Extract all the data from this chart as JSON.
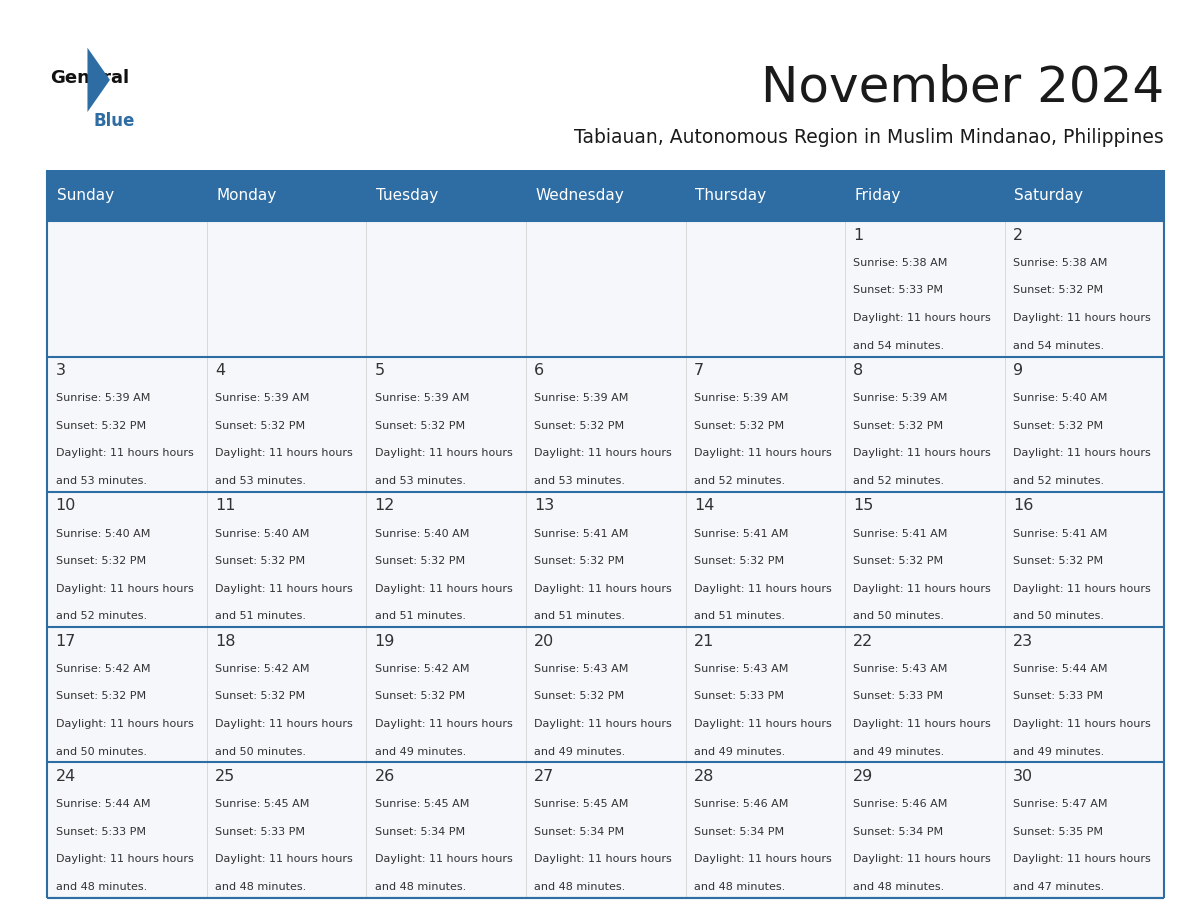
{
  "title": "November 2024",
  "subtitle": "Tabiauan, Autonomous Region in Muslim Mindanao, Philippines",
  "days_of_week": [
    "Sunday",
    "Monday",
    "Tuesday",
    "Wednesday",
    "Thursday",
    "Friday",
    "Saturday"
  ],
  "header_bg": "#2E6DA4",
  "header_text": "#FFFFFF",
  "cell_bg": "#F5F7FA",
  "border_color": "#2E6DA4",
  "row_border_color": "#2E6DA4",
  "col_border_color": "#CCCCCC",
  "text_color": "#333333",
  "title_color": "#1a1a1a",
  "calendar_data": [
    [
      null,
      null,
      null,
      null,
      null,
      {
        "day": 1,
        "sunrise": "5:38 AM",
        "sunset": "5:33 PM",
        "daylight": "11 hours and 54 minutes."
      },
      {
        "day": 2,
        "sunrise": "5:38 AM",
        "sunset": "5:32 PM",
        "daylight": "11 hours and 54 minutes."
      }
    ],
    [
      {
        "day": 3,
        "sunrise": "5:39 AM",
        "sunset": "5:32 PM",
        "daylight": "11 hours and 53 minutes."
      },
      {
        "day": 4,
        "sunrise": "5:39 AM",
        "sunset": "5:32 PM",
        "daylight": "11 hours and 53 minutes."
      },
      {
        "day": 5,
        "sunrise": "5:39 AM",
        "sunset": "5:32 PM",
        "daylight": "11 hours and 53 minutes."
      },
      {
        "day": 6,
        "sunrise": "5:39 AM",
        "sunset": "5:32 PM",
        "daylight": "11 hours and 53 minutes."
      },
      {
        "day": 7,
        "sunrise": "5:39 AM",
        "sunset": "5:32 PM",
        "daylight": "11 hours and 52 minutes."
      },
      {
        "day": 8,
        "sunrise": "5:39 AM",
        "sunset": "5:32 PM",
        "daylight": "11 hours and 52 minutes."
      },
      {
        "day": 9,
        "sunrise": "5:40 AM",
        "sunset": "5:32 PM",
        "daylight": "11 hours and 52 minutes."
      }
    ],
    [
      {
        "day": 10,
        "sunrise": "5:40 AM",
        "sunset": "5:32 PM",
        "daylight": "11 hours and 52 minutes."
      },
      {
        "day": 11,
        "sunrise": "5:40 AM",
        "sunset": "5:32 PM",
        "daylight": "11 hours and 51 minutes."
      },
      {
        "day": 12,
        "sunrise": "5:40 AM",
        "sunset": "5:32 PM",
        "daylight": "11 hours and 51 minutes."
      },
      {
        "day": 13,
        "sunrise": "5:41 AM",
        "sunset": "5:32 PM",
        "daylight": "11 hours and 51 minutes."
      },
      {
        "day": 14,
        "sunrise": "5:41 AM",
        "sunset": "5:32 PM",
        "daylight": "11 hours and 51 minutes."
      },
      {
        "day": 15,
        "sunrise": "5:41 AM",
        "sunset": "5:32 PM",
        "daylight": "11 hours and 50 minutes."
      },
      {
        "day": 16,
        "sunrise": "5:41 AM",
        "sunset": "5:32 PM",
        "daylight": "11 hours and 50 minutes."
      }
    ],
    [
      {
        "day": 17,
        "sunrise": "5:42 AM",
        "sunset": "5:32 PM",
        "daylight": "11 hours and 50 minutes."
      },
      {
        "day": 18,
        "sunrise": "5:42 AM",
        "sunset": "5:32 PM",
        "daylight": "11 hours and 50 minutes."
      },
      {
        "day": 19,
        "sunrise": "5:42 AM",
        "sunset": "5:32 PM",
        "daylight": "11 hours and 49 minutes."
      },
      {
        "day": 20,
        "sunrise": "5:43 AM",
        "sunset": "5:32 PM",
        "daylight": "11 hours and 49 minutes."
      },
      {
        "day": 21,
        "sunrise": "5:43 AM",
        "sunset": "5:33 PM",
        "daylight": "11 hours and 49 minutes."
      },
      {
        "day": 22,
        "sunrise": "5:43 AM",
        "sunset": "5:33 PM",
        "daylight": "11 hours and 49 minutes."
      },
      {
        "day": 23,
        "sunrise": "5:44 AM",
        "sunset": "5:33 PM",
        "daylight": "11 hours and 49 minutes."
      }
    ],
    [
      {
        "day": 24,
        "sunrise": "5:44 AM",
        "sunset": "5:33 PM",
        "daylight": "11 hours and 48 minutes."
      },
      {
        "day": 25,
        "sunrise": "5:45 AM",
        "sunset": "5:33 PM",
        "daylight": "11 hours and 48 minutes."
      },
      {
        "day": 26,
        "sunrise": "5:45 AM",
        "sunset": "5:34 PM",
        "daylight": "11 hours and 48 minutes."
      },
      {
        "day": 27,
        "sunrise": "5:45 AM",
        "sunset": "5:34 PM",
        "daylight": "11 hours and 48 minutes."
      },
      {
        "day": 28,
        "sunrise": "5:46 AM",
        "sunset": "5:34 PM",
        "daylight": "11 hours and 48 minutes."
      },
      {
        "day": 29,
        "sunrise": "5:46 AM",
        "sunset": "5:34 PM",
        "daylight": "11 hours and 48 minutes."
      },
      {
        "day": 30,
        "sunrise": "5:47 AM",
        "sunset": "5:35 PM",
        "daylight": "11 hours and 47 minutes."
      }
    ]
  ]
}
